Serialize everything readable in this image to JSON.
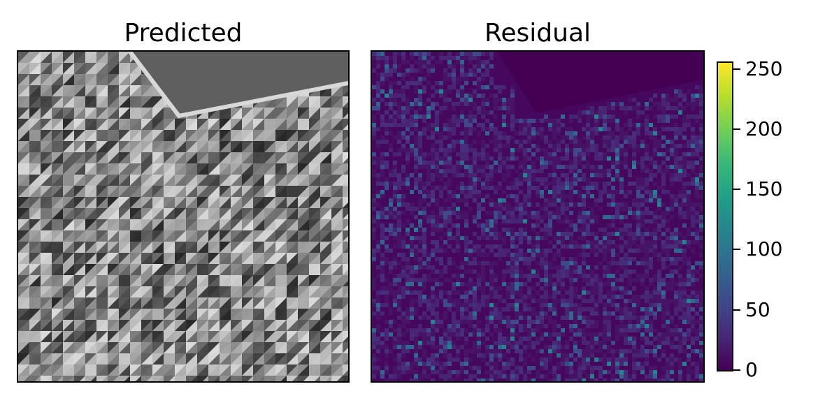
{
  "chart_data": [
    {
      "type": "heatmap",
      "title": "Predicted",
      "colormap": "gray",
      "description_values": "grayscale image (predicted frame)",
      "xlabel": "",
      "ylabel": ""
    },
    {
      "type": "heatmap",
      "title": "Residual",
      "colormap": "viridis",
      "xlabel": "",
      "ylabel": "",
      "colorbar": {
        "ticks": [
          0,
          50,
          100,
          150,
          200,
          250
        ],
        "tick_labels": [
          "0",
          "50",
          "100",
          "150",
          "200",
          "250"
        ],
        "range": [
          0,
          255
        ]
      }
    }
  ],
  "colors": {
    "viridis": [
      "#440154",
      "#482878",
      "#3e4a89",
      "#31688e",
      "#26828e",
      "#1f9e89",
      "#35b779",
      "#6ece58",
      "#b5de2b",
      "#fde725"
    ],
    "axis": "#000000",
    "background": "#ffffff"
  }
}
